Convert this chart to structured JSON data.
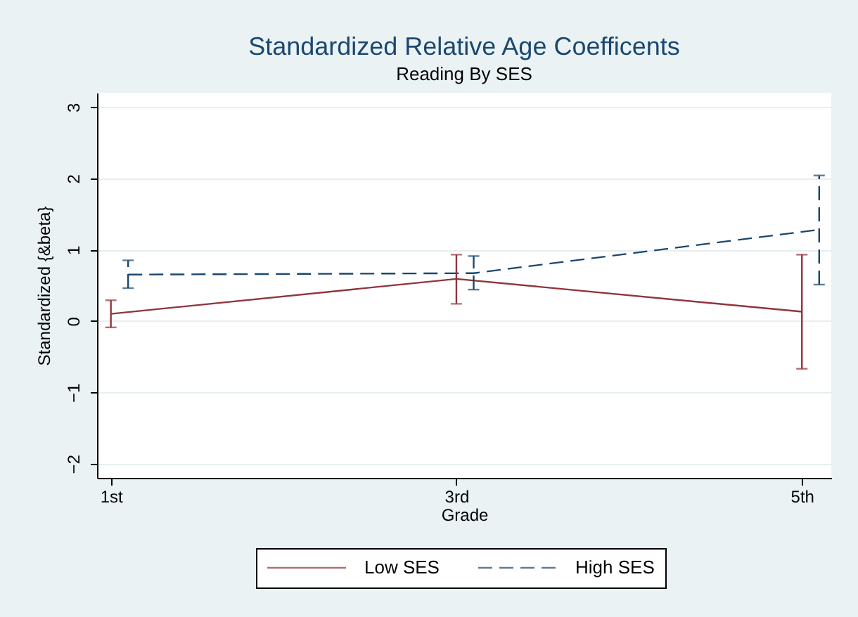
{
  "chart_data": {
    "type": "line",
    "title": "Standardized Relative Age Coefficents",
    "subtitle": "Reading By SES",
    "xlabel": "Grade",
    "ylabel": "Standardized {&beta}",
    "xlim": [
      0.92,
      5.17
    ],
    "xticks": [
      {
        "value": 1,
        "label": "1st"
      },
      {
        "value": 3,
        "label": "3rd"
      },
      {
        "value": 5,
        "label": "5th"
      }
    ],
    "ylim": [
      -2.2,
      3.2
    ],
    "yticks": [
      -2,
      -1,
      0,
      1,
      2,
      3
    ],
    "grid": "y",
    "legend": "bottom",
    "series": [
      {
        "name": "Low SES",
        "color": "#90353b",
        "line_style": "solid",
        "x": [
          1,
          3,
          5
        ],
        "values": [
          0.1,
          0.59,
          0.13
        ],
        "errors": [
          [
            -0.09,
            0.29
          ],
          [
            0.24,
            0.93
          ],
          [
            -0.67,
            0.93
          ]
        ]
      },
      {
        "name": "High SES",
        "color": "#1a476f",
        "line_style": "dashed",
        "x": [
          1.1,
          3.1,
          5.1
        ],
        "values": [
          0.65,
          0.67,
          1.28
        ],
        "errors": [
          [
            0.46,
            0.85
          ],
          [
            0.44,
            0.91
          ],
          [
            0.51,
            2.04
          ]
        ]
      }
    ]
  }
}
